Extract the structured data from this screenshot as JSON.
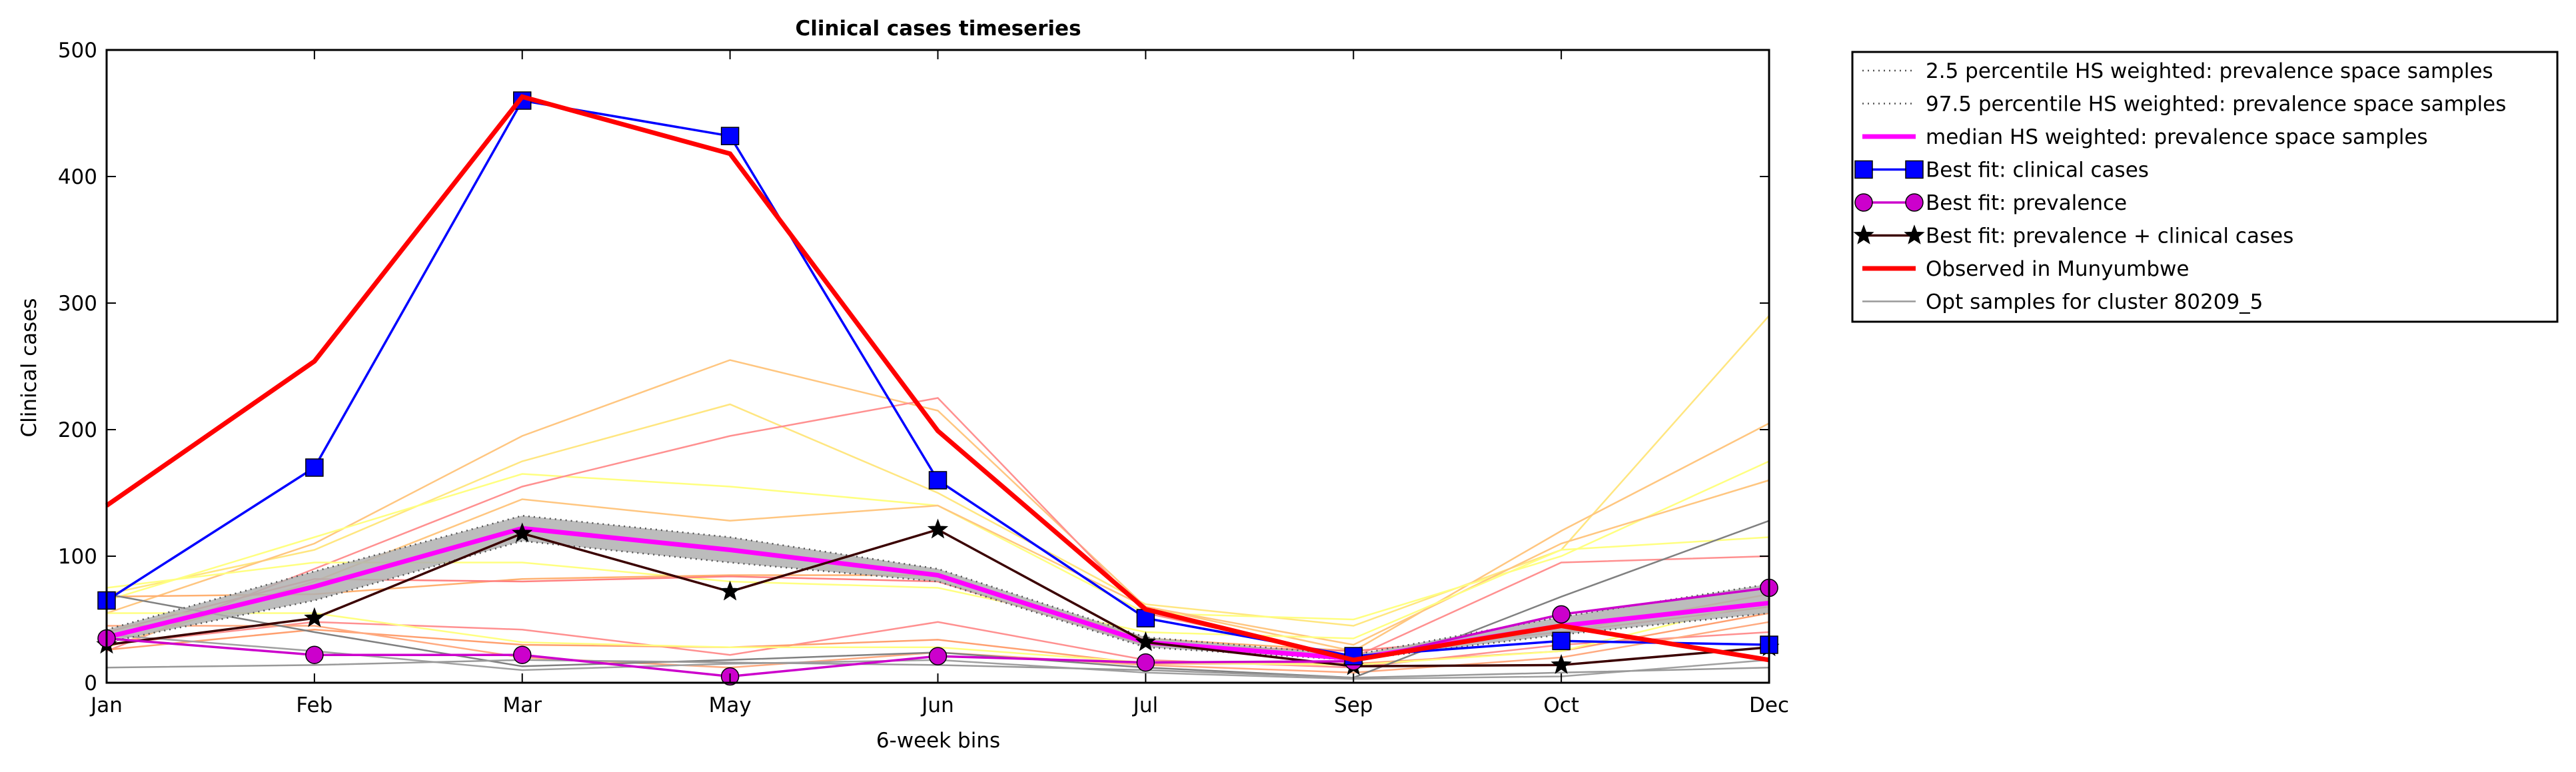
{
  "chart_data": {
    "type": "line",
    "title": "Clinical cases timeseries",
    "xlabel": "6-week bins",
    "ylabel": "Clinical cases",
    "categories": [
      "Jan",
      "Feb",
      "Mar",
      "May",
      "Jun",
      "Jul",
      "Sep",
      "Oct",
      "Dec"
    ],
    "ylim": [
      0,
      500
    ],
    "yticks": [
      0,
      100,
      200,
      300,
      400,
      500
    ],
    "grid": false,
    "legend_position": "outside-right",
    "band": {
      "lower": [
        32,
        65,
        112,
        95,
        80,
        28,
        18,
        38,
        55
      ],
      "upper": [
        42,
        88,
        132,
        115,
        90,
        36,
        22,
        52,
        78
      ],
      "fill": "#b0b0b0"
    },
    "series": [
      {
        "name": "2.5 percentile HS weighted: prevalence space samples",
        "style": "dotted",
        "color": "#555555",
        "values": [
          32,
          65,
          112,
          95,
          80,
          28,
          18,
          38,
          55
        ]
      },
      {
        "name": "97.5 percentile HS weighted: prevalence space samples",
        "style": "dotted",
        "color": "#555555",
        "values": [
          42,
          88,
          132,
          115,
          90,
          36,
          22,
          52,
          78
        ]
      },
      {
        "name": "median HS weighted: prevalence space samples",
        "style": "thick",
        "color": "#ff00ff",
        "values": [
          36,
          76,
          122,
          105,
          85,
          32,
          19,
          45,
          63
        ]
      },
      {
        "name": "Best fit: clinical cases",
        "style": "square-marker",
        "color": "#0000ff",
        "values": [
          65,
          170,
          460,
          432,
          160,
          51,
          21,
          33,
          30
        ]
      },
      {
        "name": "Best fit: prevalence",
        "style": "circle-marker",
        "color": "#cc00cc",
        "values": [
          35,
          22,
          22,
          5,
          21,
          16,
          17,
          54,
          75
        ]
      },
      {
        "name": "Best fit: prevalence + clinical cases",
        "style": "star-marker",
        "color": "#3a0000",
        "values": [
          30,
          51,
          118,
          72,
          121,
          32,
          13,
          14,
          28
        ]
      },
      {
        "name": "Observed in Munyumbwe",
        "style": "observed",
        "color": "#ff0000",
        "values": [
          140,
          254,
          463,
          418,
          199,
          58,
          18,
          45,
          18
        ]
      },
      {
        "name": "Opt samples for cluster 80209_5",
        "style": "thin",
        "color": "#999999",
        "values": [
          12,
          14,
          18,
          16,
          14,
          10,
          4,
          8,
          12
        ]
      }
    ],
    "sample_lines": [
      {
        "color": "#ffe680",
        "values": [
          70,
          105,
          175,
          220,
          150,
          62,
          45,
          105,
          290
        ]
      },
      {
        "color": "#ffc680",
        "values": [
          55,
          110,
          195,
          255,
          215,
          60,
          25,
          120,
          205
        ]
      },
      {
        "color": "#ffff80",
        "values": [
          65,
          115,
          165,
          155,
          140,
          55,
          50,
          100,
          175
        ]
      },
      {
        "color": "#ff9090",
        "values": [
          25,
          90,
          155,
          195,
          225,
          55,
          20,
          95,
          100
        ]
      },
      {
        "color": "#ffc680",
        "values": [
          28,
          80,
          145,
          128,
          140,
          60,
          30,
          110,
          160
        ]
      },
      {
        "color": "#ffff80",
        "values": [
          75,
          95,
          95,
          80,
          75,
          40,
          35,
          105,
          115
        ]
      },
      {
        "color": "#ffb070",
        "values": [
          68,
          70,
          82,
          85,
          85,
          35,
          25,
          40,
          70
        ]
      },
      {
        "color": "#ff8080",
        "values": [
          40,
          82,
          80,
          84,
          80,
          30,
          25,
          40,
          60
        ]
      },
      {
        "color": "#ff9090",
        "values": [
          30,
          48,
          42,
          22,
          48,
          18,
          12,
          30,
          40
        ]
      },
      {
        "color": "#ffa070",
        "values": [
          26,
          42,
          30,
          28,
          34,
          15,
          15,
          25,
          55
        ]
      },
      {
        "color": "#ffff80",
        "values": [
          55,
          55,
          32,
          28,
          28,
          16,
          14,
          25,
          65
        ]
      },
      {
        "color": "#ffaa80",
        "values": [
          45,
          45,
          20,
          12,
          24,
          14,
          8,
          20,
          48
        ]
      },
      {
        "color": "#808080",
        "values": [
          70,
          40,
          13,
          18,
          24,
          12,
          4,
          68,
          128
        ]
      },
      {
        "color": "#a0a0a0",
        "values": [
          38,
          25,
          10,
          15,
          18,
          8,
          3,
          5,
          18
        ]
      }
    ]
  }
}
